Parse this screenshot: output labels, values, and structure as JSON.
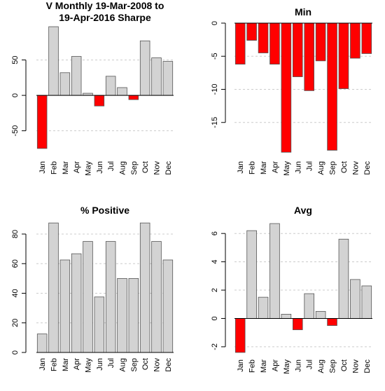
{
  "colors": {
    "positive": "#d3d3d3",
    "negative": "#ff0000",
    "grid": "#cccccc"
  },
  "chart_data": [
    {
      "type": "bar",
      "title": "V Monthly 19-Mar-2008 to",
      "subtitle": "19-Apr-2016 Sharpe",
      "categories": [
        "Jan",
        "Feb",
        "Mar",
        "Apr",
        "May",
        "Jun",
        "Jul",
        "Aug",
        "Sep",
        "Oct",
        "Nov",
        "Dec"
      ],
      "values": [
        -75,
        97,
        32,
        55,
        3,
        -15,
        27,
        11,
        -6,
        77,
        53,
        48
      ],
      "ylim": [
        -85,
        105
      ],
      "yticks": [
        -50,
        0,
        50
      ],
      "grid": true
    },
    {
      "type": "bar",
      "title": "Min",
      "categories": [
        "Jan",
        "Feb",
        "Mar",
        "Apr",
        "May",
        "Jun",
        "Jul",
        "Aug",
        "Sep",
        "Oct",
        "Nov",
        "Dec"
      ],
      "values": [
        -6.2,
        -2.6,
        -4.5,
        -6.2,
        -19.5,
        -8.1,
        -10.2,
        -5.7,
        -19.2,
        -9.9,
        -5.3,
        -4.6
      ],
      "ylim": [
        -20,
        0
      ],
      "yticks": [
        -15,
        -10,
        -5,
        0
      ],
      "grid": true
    },
    {
      "type": "bar",
      "title": "% Positive",
      "categories": [
        "Jan",
        "Feb",
        "Mar",
        "Apr",
        "May",
        "Jun",
        "Jul",
        "Aug",
        "Sep",
        "Oct",
        "Nov",
        "Dec"
      ],
      "values": [
        12.5,
        87.5,
        62.5,
        66.7,
        75,
        37.5,
        75,
        50,
        50,
        87.5,
        75,
        62.5
      ],
      "ylim": [
        0,
        89
      ],
      "yticks": [
        0,
        20,
        40,
        60,
        80
      ],
      "grid": true
    },
    {
      "type": "bar",
      "title": "Avg",
      "categories": [
        "Jan",
        "Feb",
        "Mar",
        "Apr",
        "May",
        "Jun",
        "Jul",
        "Aug",
        "Sep",
        "Oct",
        "Nov",
        "Dec"
      ],
      "values": [
        -2.4,
        6.2,
        1.5,
        6.7,
        0.3,
        -0.8,
        1.75,
        0.5,
        -0.5,
        5.6,
        2.75,
        2.3
      ],
      "ylim": [
        -2.5,
        6.9
      ],
      "yticks": [
        -2,
        0,
        2,
        4,
        6
      ],
      "grid": true
    }
  ]
}
